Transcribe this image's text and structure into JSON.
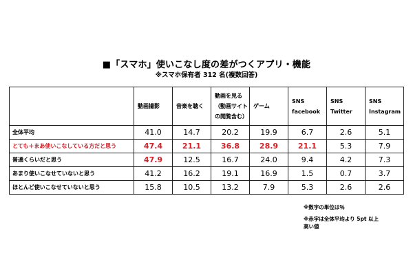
{
  "colors": {
    "highlight": "#d92027",
    "text": "#000000",
    "border": "#222222"
  },
  "chart_data": {
    "type": "table",
    "title": "■「スマホ」使いこなし度の差がつくアプリ・機能",
    "subtitle": "※スマホ保有者 312 名(複数回答)",
    "columns": [
      [
        "動画撮影"
      ],
      [
        "音楽を聴く"
      ],
      [
        "動画を見る",
        "（動画サイト",
        "の閲覧含む）"
      ],
      [
        "ゲーム"
      ],
      [
        "SNS",
        "facebook"
      ],
      [
        "SNS",
        "Twitter"
      ],
      [
        "SNS",
        "Instagram"
      ]
    ],
    "rows": [
      {
        "label": "全体平均",
        "label_red": false,
        "values": [
          "41.0",
          "14.7",
          "20.2",
          "19.9",
          "6.7",
          "2.6",
          "5.1"
        ],
        "red": [
          false,
          false,
          false,
          false,
          false,
          false,
          false
        ]
      },
      {
        "label": "とても＋まあ使いこなしている方だと思う",
        "label_red": true,
        "values": [
          "47.4",
          "21.1",
          "36.8",
          "28.9",
          "21.1",
          "5.3",
          "7.9"
        ],
        "red": [
          true,
          true,
          true,
          true,
          true,
          false,
          false
        ]
      },
      {
        "label": "普通くらいだと思う",
        "label_red": false,
        "values": [
          "47.9",
          "12.5",
          "16.7",
          "24.0",
          "9.4",
          "4.2",
          "7.3"
        ],
        "red": [
          true,
          false,
          false,
          false,
          false,
          false,
          false
        ]
      },
      {
        "label": "あまり使いこなせていないと思う",
        "label_red": false,
        "values": [
          "41.2",
          "16.2",
          "19.1",
          "16.9",
          "1.5",
          "0.7",
          "3.7"
        ],
        "red": [
          false,
          false,
          false,
          false,
          false,
          false,
          false
        ]
      },
      {
        "label": "ほとんど使いこなせていないと思う",
        "label_red": false,
        "values": [
          "15.8",
          "10.5",
          "13.2",
          "7.9",
          "5.3",
          "2.6",
          "2.6"
        ],
        "red": [
          false,
          false,
          false,
          false,
          false,
          false,
          false
        ]
      }
    ],
    "notes": [
      "※数字の単位は％",
      "※赤字は全体平均より 5pt 以上高い値"
    ]
  }
}
